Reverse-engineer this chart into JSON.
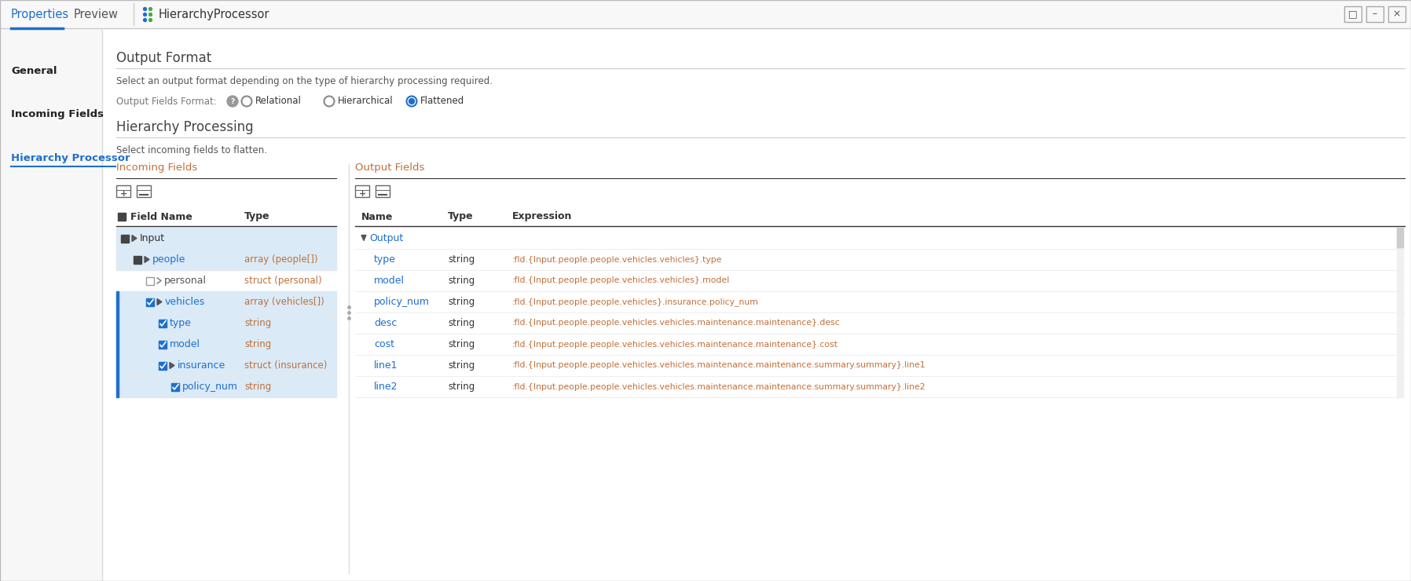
{
  "bg_color": "#ffffff",
  "tab_bar_bg": "#f8f8f8",
  "active_tab": "Properties",
  "tab_icon_label": "HierarchyProcessor",
  "sidebar_items": [
    "General",
    "Incoming Fields",
    "Hierarchy Processor"
  ],
  "active_sidebar": "Hierarchy Processor",
  "section1_title": "Output Format",
  "section1_desc": "Select an output format depending on the type of hierarchy processing required.",
  "radio_label": "Output Fields Format:",
  "radio_options": [
    "Relational",
    "Hierarchical",
    "Flattened"
  ],
  "radio_selected": 2,
  "section2_title": "Hierarchy Processing",
  "section2_desc": "Select incoming fields to flatten.",
  "incoming_label": "Incoming Fields",
  "output_label": "Output Fields",
  "incoming_rows": [
    {
      "indent": 0,
      "checkbox": "square_checked",
      "label": "Input",
      "type": "",
      "highlight": true,
      "triangle": true
    },
    {
      "indent": 1,
      "checkbox": "square_checked",
      "label": "people",
      "type": "array (people[])",
      "highlight": true,
      "triangle": true
    },
    {
      "indent": 2,
      "checkbox": "square_empty",
      "label": "personal",
      "type": "struct (personal)",
      "highlight": false,
      "triangle": false,
      "arrow": true
    },
    {
      "indent": 2,
      "checkbox": "check_checked",
      "label": "vehicles",
      "type": "array (vehicles[])",
      "highlight": true,
      "triangle": true
    },
    {
      "indent": 3,
      "checkbox": "check_checked",
      "label": "type",
      "type": "string",
      "highlight": true,
      "triangle": false
    },
    {
      "indent": 3,
      "checkbox": "check_checked",
      "label": "model",
      "type": "string",
      "highlight": true,
      "triangle": false
    },
    {
      "indent": 3,
      "checkbox": "check_checked",
      "label": "insurance",
      "type": "struct (insurance)",
      "highlight": true,
      "triangle": true
    },
    {
      "indent": 4,
      "checkbox": "check_checked",
      "label": "policy_num",
      "type": "string",
      "highlight": true,
      "triangle": false
    }
  ],
  "output_rows": [
    {
      "indent": 0,
      "label": "Output",
      "type": "",
      "expression": "",
      "is_group": true
    },
    {
      "indent": 1,
      "label": "type",
      "type": "string",
      "expression": ":fld.{Input.people.people.vehicles.vehicles}.type"
    },
    {
      "indent": 1,
      "label": "model",
      "type": "string",
      "expression": ":fld.{Input.people.people.vehicles.vehicles}.model"
    },
    {
      "indent": 1,
      "label": "policy_num",
      "type": "string",
      "expression": ":fld.{Input.people.people.vehicles}.insurance.policy_num"
    },
    {
      "indent": 1,
      "label": "desc",
      "type": "string",
      "expression": ":fld.{Input.people.people.vehicles.vehicles.maintenance.maintenance}.desc"
    },
    {
      "indent": 1,
      "label": "cost",
      "type": "string",
      "expression": ":fld.{Input.people.people.vehicles.vehicles.maintenance.maintenance}.cost"
    },
    {
      "indent": 1,
      "label": "line1",
      "type": "string",
      "expression": ":fld.{Input.people.people.vehicles.vehicles.maintenance.maintenance.summary.summary}.line1"
    },
    {
      "indent": 1,
      "label": "line2",
      "type": "string",
      "expression": ":fld.{Input.people.people.vehicles.vehicles.maintenance.maintenance.summary.summary}.line2"
    }
  ],
  "color_blue": "#1e6fcc",
  "color_orange": "#c0703a",
  "color_dark": "#333333",
  "color_gray": "#888888",
  "color_row_hl": "#daeaf7",
  "color_border": "#cccccc",
  "color_sidebar_bg": "#f7f7f7"
}
